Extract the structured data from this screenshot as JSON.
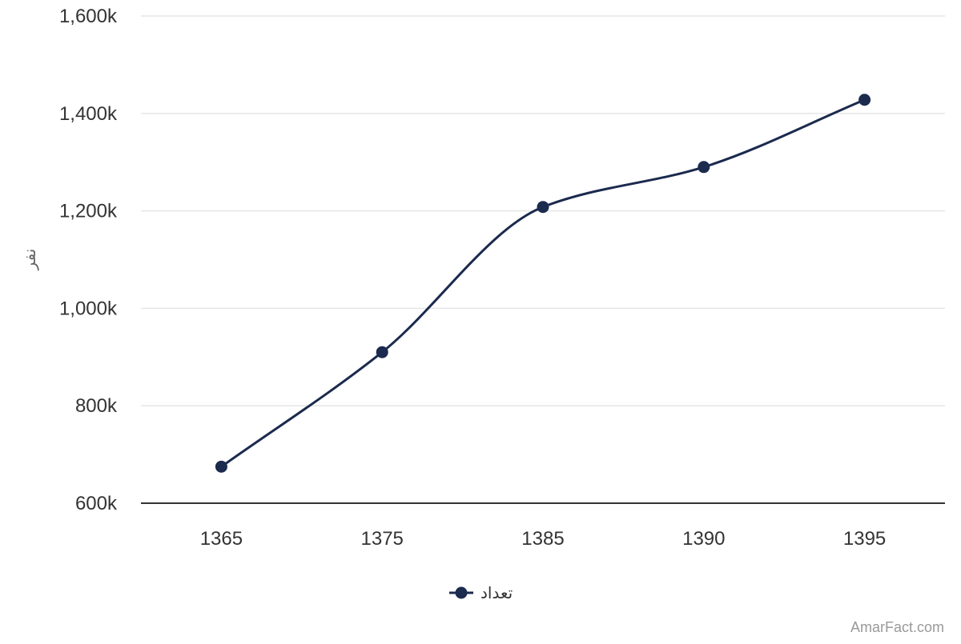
{
  "chart_data": {
    "type": "line",
    "title": "",
    "xlabel": "",
    "ylabel": "نفر",
    "categories": [
      "1365",
      "1375",
      "1385",
      "1390",
      "1395"
    ],
    "series": [
      {
        "name": "تعداد",
        "color": "#1b2a4e",
        "values": [
          675000,
          910000,
          1208000,
          1290000,
          1428000
        ]
      }
    ],
    "y_ticks": [
      {
        "value": 600000,
        "label": "600k"
      },
      {
        "value": 800000,
        "label": "800k"
      },
      {
        "value": 1000000,
        "label": "1,000k"
      },
      {
        "value": 1200000,
        "label": "1,200k"
      },
      {
        "value": 1400000,
        "label": "1,400k"
      },
      {
        "value": 1600000,
        "label": "1,600k"
      }
    ],
    "ylim": [
      600000,
      1600000
    ],
    "grid": true,
    "smooth": true,
    "legend_position": "bottom-center"
  },
  "credit": "AmarFact.com",
  "colors": {
    "series": "#1b2a4e",
    "grid": "#e6e6e6",
    "axis": "#333333"
  }
}
